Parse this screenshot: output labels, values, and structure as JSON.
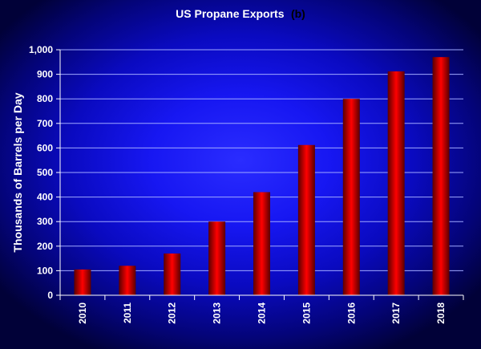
{
  "chart_data": {
    "type": "bar",
    "title": "US Propane Exports",
    "title_suffix": "(b)",
    "xlabel": "",
    "ylabel": "Thousands of Barrels per Day",
    "categories": [
      "2010",
      "2011",
      "2012",
      "2013",
      "2014",
      "2015",
      "2016",
      "2017",
      "2018"
    ],
    "values": [
      105,
      120,
      170,
      300,
      420,
      612,
      800,
      912,
      970
    ],
    "ylim": [
      0,
      1000
    ],
    "yticks": [
      0,
      100,
      200,
      300,
      400,
      500,
      600,
      700,
      800,
      900,
      1000
    ],
    "ytick_labels": [
      "0",
      "100",
      "200",
      "300",
      "400",
      "500",
      "600",
      "700",
      "800",
      "900",
      "1,000"
    ],
    "grid": true,
    "legend": "none",
    "bar_color": "#ff0000",
    "bar_dark_color": "#5a0000",
    "background_color": "#1414ee",
    "gridline_color": "#9fa8ff",
    "axis_color": "#ffffff"
  }
}
